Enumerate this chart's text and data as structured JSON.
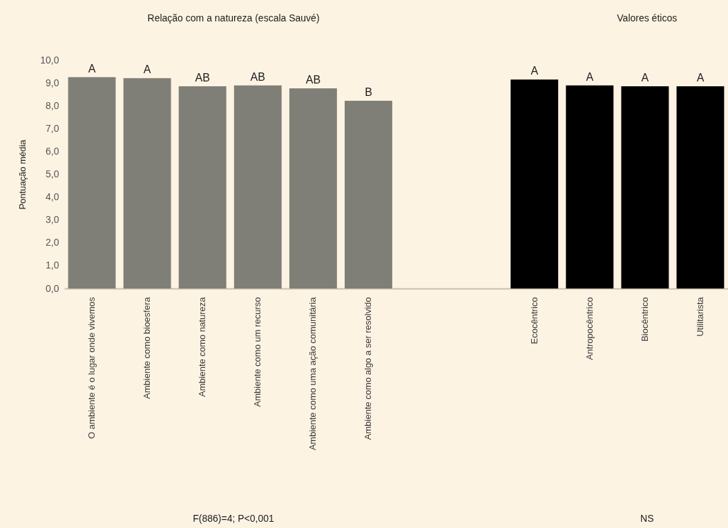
{
  "chart_data": {
    "type": "bar",
    "ylabel": "Pontuação média",
    "categories": [
      "O ambiente é o lugar onde vivemos",
      "Ambiente como bioesfera",
      "Ambiente como natureza",
      "Ambiente como um recurso",
      "Ambiente como uma ação comunitária",
      "Ambiente como algo a ser resolvido",
      null,
      null,
      "Ecocêntrico",
      "Antropocêntrico",
      "Biocêntrico",
      "Utilitarista"
    ],
    "values": [
      9.25,
      9.21,
      8.85,
      8.89,
      8.76,
      8.22,
      null,
      null,
      9.15,
      8.89,
      8.85,
      8.85
    ],
    "colors": [
      "#7f7f77",
      "#7f7f77",
      "#7f7f77",
      "#7f7f77",
      "#7f7f77",
      "#7f7f77",
      null,
      null,
      "#000000",
      "#000000",
      "#000000",
      "#000000"
    ],
    "value_labels": [
      "A",
      "A",
      "AB",
      "AB",
      "AB",
      "B",
      null,
      null,
      "A",
      "A",
      "A",
      "A"
    ],
    "ylim": [
      0,
      10
    ],
    "yticks": [
      {
        "value": 0,
        "label": "0,0"
      },
      {
        "value": 1,
        "label": "1,0"
      },
      {
        "value": 2,
        "label": "2,0"
      },
      {
        "value": 3,
        "label": "3,0"
      },
      {
        "value": 4,
        "label": "4,0"
      },
      {
        "value": 5,
        "label": "5,0"
      },
      {
        "value": 6,
        "label": "6,0"
      },
      {
        "value": 7,
        "label": "7,0"
      },
      {
        "value": 8,
        "label": "8,0"
      },
      {
        "value": 9,
        "label": "9,0"
      },
      {
        "value": 10,
        "label": "10,0"
      }
    ],
    "grid": false,
    "annotations": [
      "Relação com a natureza  (escala Sauvé)",
      "Valores éticos",
      "F(886)=4; P<0,001",
      "NS"
    ]
  }
}
